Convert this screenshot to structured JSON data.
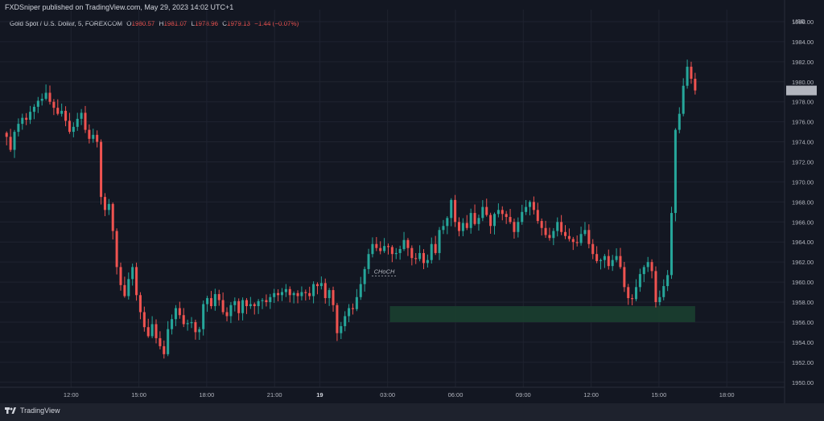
{
  "header": {
    "published": "FXDSniper published on TradingView.com, May 29, 2023 14:02 UTC+1"
  },
  "symbol": {
    "name": "Gold Spot / U.S. Dollar, 5, FOREXCOM",
    "open_label": "O",
    "open": "1980.57",
    "high_label": "H",
    "high": "1981.07",
    "low_label": "L",
    "low": "1978.96",
    "close_label": "C",
    "close": "1979.13",
    "change": "−1.44 (−0.07%)"
  },
  "footer": {
    "brand": "TradingView"
  },
  "colors": {
    "up": "#26a69a",
    "down": "#ef5350",
    "zone": "#1b3f30",
    "bg": "#131722",
    "grid": "#1f2330"
  },
  "chart_data": {
    "type": "candlestick",
    "currency": "USD",
    "last_price": "1979.13",
    "y_ticks": [
      "1950.00",
      "1952.00",
      "1954.00",
      "1956.00",
      "1958.00",
      "1960.00",
      "1962.00",
      "1964.00",
      "1966.00",
      "1968.00",
      "1970.00",
      "1972.00",
      "1974.00",
      "1976.00",
      "1978.00",
      "1980.00",
      "1982.00",
      "1984.00",
      "1986.00"
    ],
    "ylim": [
      1949.5,
      1987.2
    ],
    "x_ticks": [
      {
        "label": "12:00",
        "t": 3
      },
      {
        "label": "15:00",
        "t": 6
      },
      {
        "label": "18:00",
        "t": 9
      },
      {
        "label": "21:00",
        "t": 12
      },
      {
        "label": "19",
        "t": 14,
        "bold": true
      },
      {
        "label": "03:00",
        "t": 17
      },
      {
        "label": "06:00",
        "t": 20
      },
      {
        "label": "09:00",
        "t": 23
      },
      {
        "label": "12:00",
        "t": 26
      },
      {
        "label": "15:00",
        "t": 29
      },
      {
        "label": "18:00",
        "t": 32
      }
    ],
    "annotation": {
      "text": "CHoCH",
      "t_start": 16.3,
      "t_end": 17.4,
      "price": 1960.6
    },
    "demand_zone": {
      "t_start": 17.1,
      "t_end": 30.6,
      "low": 1956.0,
      "high": 1957.6
    },
    "closes": [
      1974.5,
      1973.2,
      1975.0,
      1975.8,
      1976.4,
      1976.2,
      1977.0,
      1977.5,
      1978.1,
      1978.3,
      1978.9,
      1978.0,
      1977.4,
      1976.8,
      1977.1,
      1976.1,
      1975.0,
      1975.5,
      1976.3,
      1976.9,
      1975.2,
      1974.3,
      1974.7,
      1974.0,
      1968.5,
      1967.2,
      1967.8,
      1965.1,
      1961.5,
      1959.7,
      1958.6,
      1960.3,
      1961.5,
      1958.7,
      1957.0,
      1955.5,
      1954.6,
      1955.8,
      1954.4,
      1953.6,
      1952.8,
      1955.3,
      1956.3,
      1957.4,
      1956.7,
      1955.8,
      1955.9,
      1956.0,
      1955.0,
      1955.3,
      1957.8,
      1958.4,
      1957.6,
      1958.8,
      1958.2,
      1957.0,
      1956.6,
      1957.7,
      1958.1,
      1956.9,
      1958.2,
      1957.6,
      1957.8,
      1957.6,
      1958.1,
      1958.2,
      1958.0,
      1958.5,
      1958.9,
      1958.7,
      1959.0,
      1959.3,
      1958.7,
      1958.9,
      1958.6,
      1959.0,
      1958.9,
      1958.6,
      1959.8,
      1959.6,
      1959.9,
      1958.4,
      1959.2,
      1957.7,
      1954.9,
      1955.6,
      1956.6,
      1957.4,
      1957.3,
      1958.5,
      1959.8,
      1961.3,
      1962.8,
      1963.8,
      1963.4,
      1963.1,
      1963.6,
      1963.5,
      1962.8,
      1962.9,
      1963.3,
      1964.2,
      1963.4,
      1962.4,
      1962.3,
      1962.9,
      1961.9,
      1962.2,
      1963.8,
      1962.9,
      1965.2,
      1965.6,
      1966.4,
      1968.2,
      1966.0,
      1965.1,
      1965.9,
      1965.4,
      1966.9,
      1965.8,
      1966.4,
      1967.5,
      1966.7,
      1965.6,
      1966.8,
      1967.2,
      1966.8,
      1966.5,
      1966.0,
      1965.0,
      1966.0,
      1967.0,
      1967.5,
      1968.0,
      1967.2,
      1966.1,
      1965.4,
      1964.7,
      1964.4,
      1965.1,
      1966.0,
      1965.0,
      1964.6,
      1964.3,
      1964.0,
      1963.9,
      1964.8,
      1965.2,
      1963.8,
      1962.8,
      1962.1,
      1962.2,
      1962.6,
      1961.6,
      1962.2,
      1962.6,
      1961.5,
      1959.5,
      1958.4,
      1958.3,
      1959.5,
      1960.8,
      1961.5,
      1962.0,
      1961.1,
      1958.0,
      1958.5,
      1959.6,
      1960.7,
      1966.9,
      1975.2,
      1976.8,
      1979.6,
      1981.5,
      1980.3,
      1979.13
    ]
  }
}
